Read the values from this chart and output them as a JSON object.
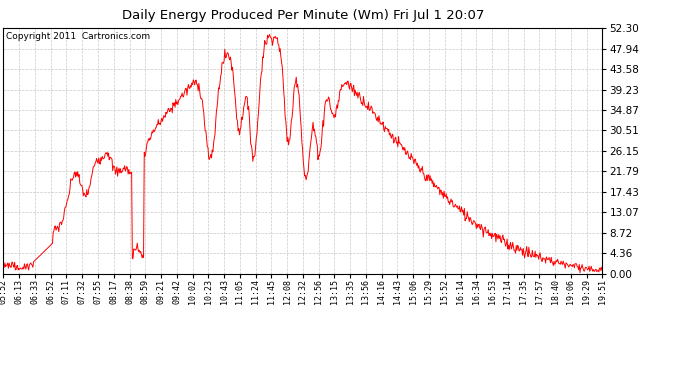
{
  "title": "Daily Energy Produced Per Minute (Wm) Fri Jul 1 20:07",
  "copyright": "Copyright 2011  Cartronics.com",
  "line_color": "red",
  "bg_color": "white",
  "plot_bg_color": "white",
  "grid_color": "#bbbbbb",
  "ylim": [
    0.0,
    52.3
  ],
  "yticks": [
    0.0,
    4.36,
    8.72,
    13.07,
    17.43,
    21.79,
    26.15,
    30.51,
    34.87,
    39.23,
    43.58,
    47.94,
    52.3
  ],
  "xtick_labels": [
    "05:52",
    "06:13",
    "06:33",
    "06:52",
    "07:11",
    "07:32",
    "07:55",
    "08:17",
    "08:38",
    "08:59",
    "09:21",
    "09:42",
    "10:02",
    "10:23",
    "10:43",
    "11:05",
    "11:24",
    "11:45",
    "12:08",
    "12:32",
    "12:56",
    "13:15",
    "13:35",
    "13:56",
    "14:16",
    "14:43",
    "15:06",
    "15:29",
    "15:52",
    "16:14",
    "16:34",
    "16:53",
    "17:14",
    "17:35",
    "17:57",
    "18:40",
    "19:06",
    "19:29",
    "19:51"
  ],
  "num_points": 856
}
